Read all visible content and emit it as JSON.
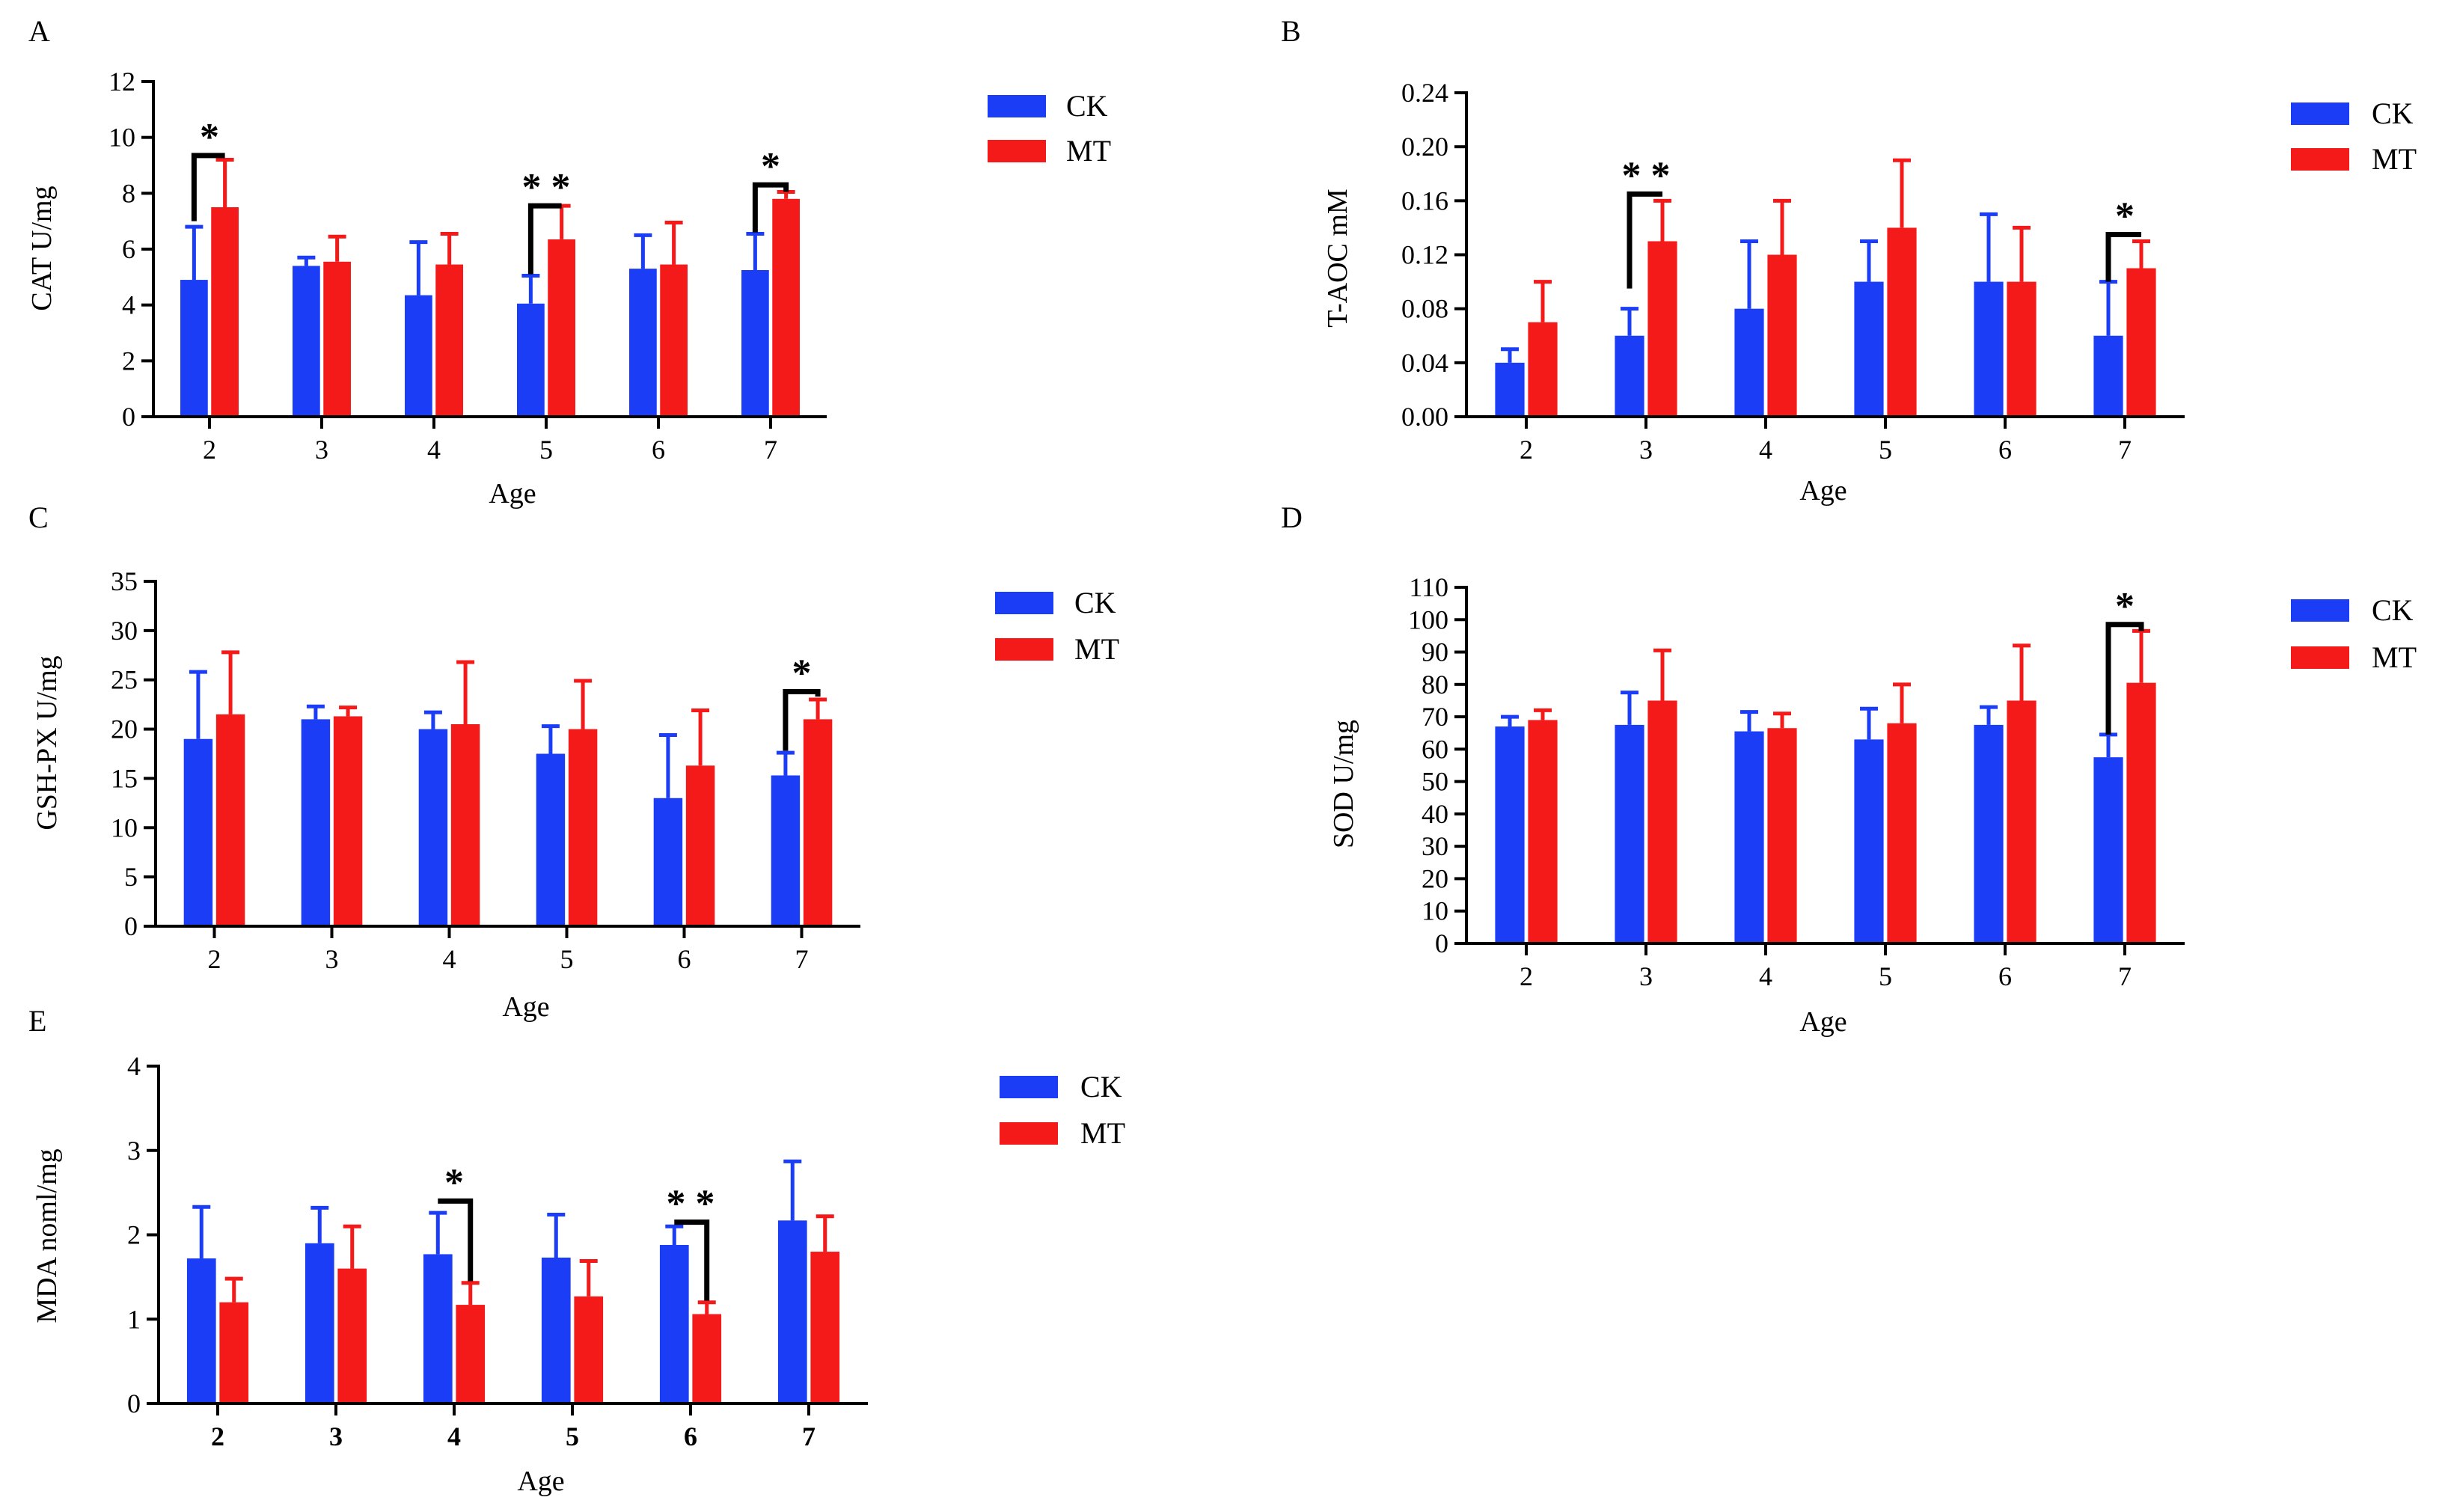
{
  "colors": {
    "CK": "#1a3df5",
    "MT": "#f51a1a",
    "axis": "#000000"
  },
  "chart_data": [
    {
      "panel": "A",
      "type": "bar",
      "xlabel": "Age",
      "ylabel": "CAT U/mg",
      "categories": [
        "2",
        "3",
        "4",
        "5",
        "6",
        "7"
      ],
      "ylim": [
        0,
        12
      ],
      "yticks": [
        "0",
        "2",
        "4",
        "6",
        "8",
        "10",
        "12"
      ],
      "series": [
        {
          "name": "CK",
          "values": [
            4.9,
            5.4,
            4.35,
            4.05,
            5.3,
            5.25
          ],
          "errors": [
            1.9,
            0.3,
            1.9,
            1.0,
            1.2,
            1.3
          ]
        },
        {
          "name": "MT",
          "values": [
            7.5,
            5.55,
            5.45,
            6.35,
            5.45,
            7.8
          ],
          "errors": [
            1.7,
            0.9,
            1.1,
            1.2,
            1.5,
            0.25
          ]
        }
      ],
      "significance": [
        {
          "category": "2",
          "label": "*",
          "ck_level": 7.0,
          "mt_level": 9.35,
          "top": 9.35
        },
        {
          "category": "5",
          "label": "* *",
          "ck_level": 5.1,
          "mt_level": 7.55,
          "top": 7.55
        },
        {
          "category": "7",
          "label": "*",
          "ck_level": 6.6,
          "mt_level": 8.05,
          "top": 8.3
        }
      ]
    },
    {
      "panel": "B",
      "type": "bar",
      "xlabel": "Age",
      "ylabel": "T-AOC mM",
      "categories": [
        "2",
        "3",
        "4",
        "5",
        "6",
        "7"
      ],
      "ylim": [
        0,
        0.24
      ],
      "yticks": [
        "0.00",
        "0.04",
        "0.08",
        "0.12",
        "0.16",
        "0.20",
        "0.24"
      ],
      "series": [
        {
          "name": "CK",
          "values": [
            0.04,
            0.06,
            0.08,
            0.1,
            0.1,
            0.06
          ],
          "errors": [
            0.01,
            0.02,
            0.05,
            0.03,
            0.05,
            0.04
          ]
        },
        {
          "name": "MT",
          "values": [
            0.07,
            0.13,
            0.12,
            0.14,
            0.1,
            0.11
          ],
          "errors": [
            0.03,
            0.03,
            0.04,
            0.05,
            0.04,
            0.02
          ]
        }
      ],
      "significance": [
        {
          "category": "3",
          "label": "* *",
          "ck_level": 0.095,
          "mt_level": 0.165,
          "top": 0.165
        },
        {
          "category": "7",
          "label": "*",
          "ck_level": 0.1,
          "mt_level": 0.135,
          "top": 0.135
        }
      ]
    },
    {
      "panel": "C",
      "type": "bar",
      "xlabel": "Age",
      "ylabel": "GSH-PX U/mg",
      "categories": [
        "2",
        "3",
        "4",
        "5",
        "6",
        "7"
      ],
      "ylim": [
        0,
        35
      ],
      "yticks": [
        "0",
        "5",
        "10",
        "15",
        "20",
        "25",
        "30",
        "35"
      ],
      "series": [
        {
          "name": "CK",
          "values": [
            19.0,
            21.0,
            20.0,
            17.5,
            13.0,
            15.3
          ],
          "errors": [
            6.8,
            1.3,
            1.7,
            2.8,
            6.4,
            2.3
          ]
        },
        {
          "name": "MT",
          "values": [
            21.5,
            21.3,
            20.5,
            20.0,
            16.3,
            21.0
          ],
          "errors": [
            6.3,
            0.9,
            6.3,
            4.9,
            5.6,
            2.0
          ]
        }
      ],
      "significance": [
        {
          "category": "7",
          "label": "*",
          "ck_level": 17.8,
          "mt_level": 23.3,
          "top": 23.8
        }
      ]
    },
    {
      "panel": "D",
      "type": "bar",
      "xlabel": "Age",
      "ylabel": "SOD U/mg",
      "categories": [
        "2",
        "3",
        "4",
        "5",
        "6",
        "7"
      ],
      "ylim": [
        0,
        110
      ],
      "yticks": [
        "0",
        "10",
        "20",
        "30",
        "40",
        "50",
        "60",
        "70",
        "80",
        "90",
        "100",
        "110"
      ],
      "series": [
        {
          "name": "CK",
          "values": [
            67,
            67.5,
            65.5,
            63,
            67.5,
            57.5
          ],
          "errors": [
            3,
            10,
            6,
            9.5,
            5.5,
            7
          ]
        },
        {
          "name": "MT",
          "values": [
            69,
            75,
            66.5,
            68,
            75,
            80.5
          ],
          "errors": [
            3,
            15.5,
            4.5,
            12,
            17,
            16
          ]
        }
      ],
      "significance": [
        {
          "category": "7",
          "label": "*",
          "ck_level": 64.5,
          "mt_level": 96.5,
          "top": 98.5
        }
      ]
    },
    {
      "panel": "E",
      "type": "bar",
      "xlabel": "Age",
      "ylabel": "MDA noml/mg",
      "categories": [
        "2",
        "3",
        "4",
        "5",
        "6",
        "7"
      ],
      "ylim": [
        0,
        4
      ],
      "yticks": [
        "0",
        "1",
        "2",
        "3",
        "4"
      ],
      "series": [
        {
          "name": "CK",
          "values": [
            1.72,
            1.9,
            1.77,
            1.73,
            1.88,
            2.17
          ],
          "errors": [
            0.61,
            0.42,
            0.49,
            0.51,
            0.22,
            0.7
          ]
        },
        {
          "name": "MT",
          "values": [
            1.2,
            1.6,
            1.17,
            1.27,
            1.06,
            1.8
          ],
          "errors": [
            0.28,
            0.5,
            0.26,
            0.42,
            0.14,
            0.42
          ]
        }
      ],
      "significance": [
        {
          "category": "4",
          "label": "*",
          "ck_level": 2.4,
          "mt_level": 1.45,
          "top": 2.4
        },
        {
          "category": "6",
          "label": "* *",
          "ck_level": 2.15,
          "mt_level": 1.22,
          "top": 2.15
        }
      ]
    }
  ]
}
